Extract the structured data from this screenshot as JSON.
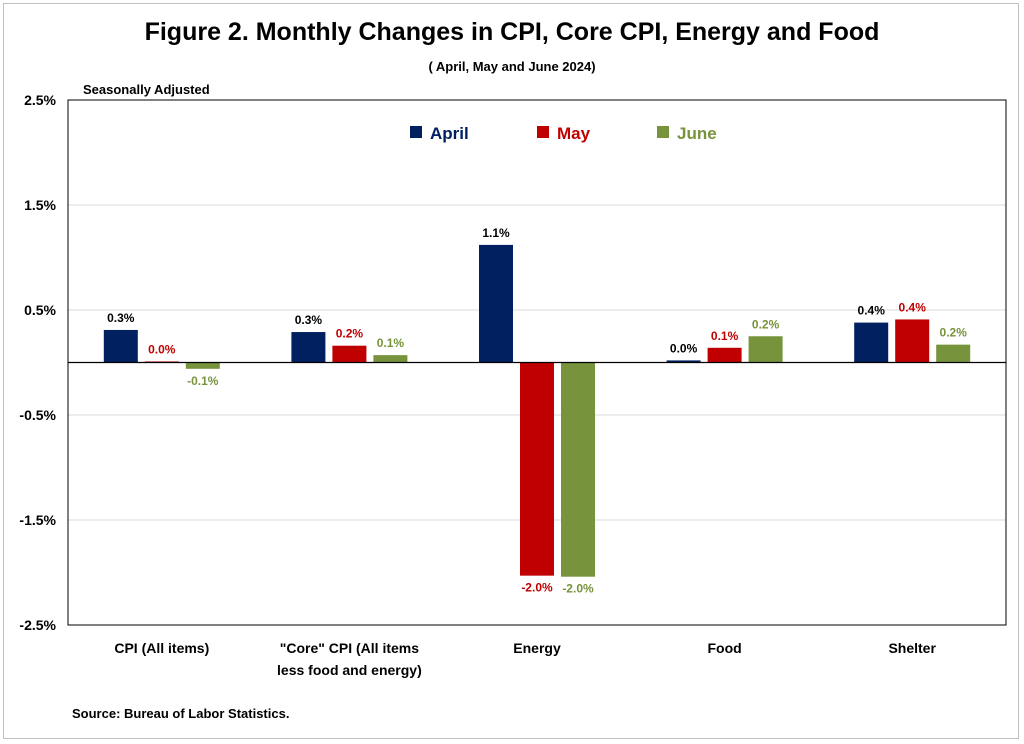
{
  "chart_data": {
    "type": "bar",
    "title": "Figure 2. Monthly Changes in CPI, Core CPI, Energy and Food",
    "subtitle": "( April, May and June 2024)",
    "note": "Seasonally Adjusted",
    "source": "Source: Bureau of Labor Statistics.",
    "categories": [
      [
        "CPI (All items)"
      ],
      [
        "\"Core\" CPI (All items",
        "less food and energy)"
      ],
      [
        "Energy"
      ],
      [
        "Food"
      ],
      [
        "Shelter"
      ]
    ],
    "series": [
      {
        "name": "April",
        "color": "#002060",
        "values": [
          0.31,
          0.29,
          1.12,
          0.02,
          0.38
        ],
        "labels": [
          "0.3%",
          "0.3%",
          "1.1%",
          "0.0%",
          "0.4%"
        ]
      },
      {
        "name": "May",
        "color": "#C00000",
        "values": [
          0.01,
          0.16,
          -2.03,
          0.14,
          0.41
        ],
        "labels": [
          "0.0%",
          "0.2%",
          "-2.0%",
          "0.1%",
          "0.4%"
        ]
      },
      {
        "name": "June",
        "color": "#77933C",
        "values": [
          -0.06,
          0.07,
          -2.04,
          0.25,
          0.17
        ],
        "labels": [
          "-0.1%",
          "0.1%",
          "-2.0%",
          "0.2%",
          "0.2%"
        ]
      }
    ],
    "yticks": [
      2.5,
      1.5,
      0.5,
      -0.5,
      -1.5,
      -2.5
    ],
    "ytick_labels": [
      "2.5%",
      "1.5%",
      "0.5%",
      "-0.5%",
      "-1.5%",
      "-2.5%"
    ],
    "ylim": [
      -2.5,
      2.5
    ],
    "grid": true,
    "legend_position": "top-center"
  }
}
